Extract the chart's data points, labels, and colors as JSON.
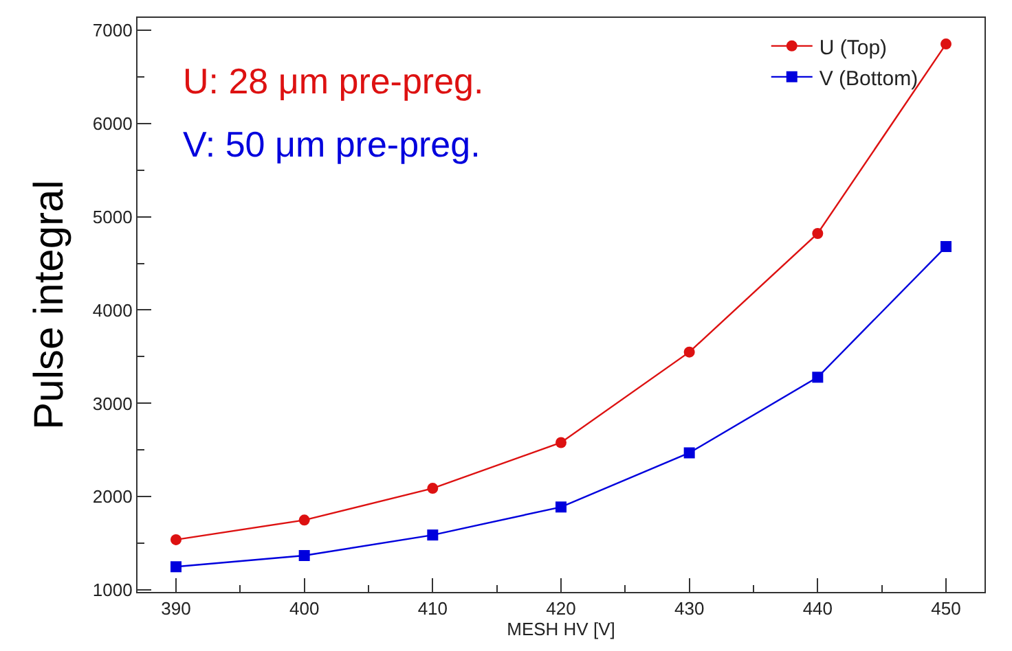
{
  "chart_data": {
    "type": "line",
    "xlabel": "MESH HV [V]",
    "ylabel": "Pulse integral",
    "x": [
      390,
      400,
      410,
      420,
      430,
      440,
      450
    ],
    "series": [
      {
        "name": "U (Top)",
        "color": "#dd1111",
        "marker": "circle",
        "values": [
          1540,
          1750,
          2090,
          2580,
          3550,
          4820,
          6850
        ]
      },
      {
        "name": "V (Bottom)",
        "color": "#0000dd",
        "marker": "square",
        "values": [
          1250,
          1370,
          1590,
          1890,
          2470,
          3280,
          4680
        ]
      }
    ],
    "annotations": [
      "U: 28 μm pre-preg.",
      "V: 50 μm pre-preg."
    ],
    "xlim": [
      387,
      453
    ],
    "ylim": [
      980,
      7130
    ],
    "xticks": [
      390,
      400,
      410,
      420,
      430,
      440,
      450
    ],
    "yticks": [
      1000,
      2000,
      3000,
      4000,
      5000,
      6000,
      7000
    ],
    "legend": "top right",
    "line_style": "solid"
  }
}
